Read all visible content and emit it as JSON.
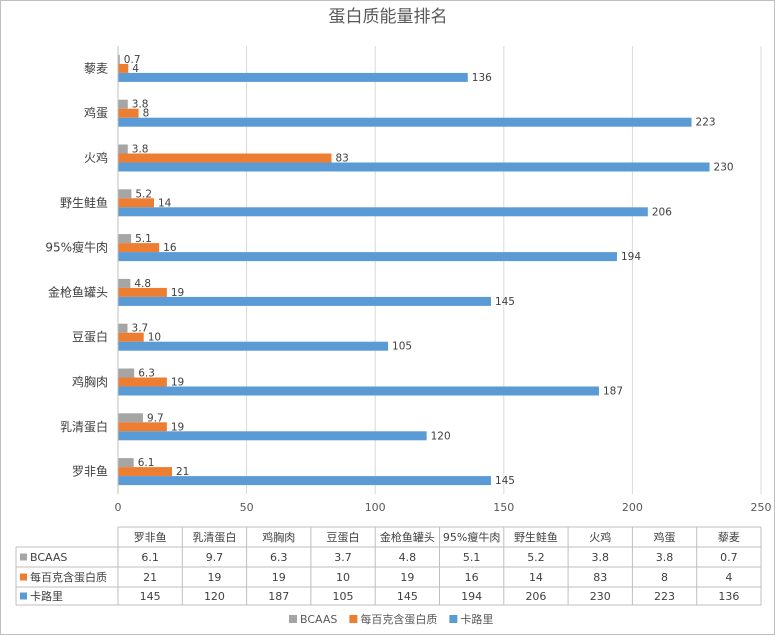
{
  "chart_data": {
    "type": "bar",
    "orientation": "horizontal",
    "title": "蛋白质能量排名",
    "categories": [
      "罗非鱼",
      "乳清蛋白",
      "鸡胸肉",
      "豆蛋白",
      "金枪鱼罐头",
      "95%瘦牛肉",
      "野生鲑鱼",
      "火鸡",
      "鸡蛋",
      "藜麦"
    ],
    "series": [
      {
        "name": "BCAAS",
        "color": "#a5a5a5",
        "values": [
          6.1,
          9.7,
          6.3,
          3.7,
          4.8,
          5.1,
          5.2,
          3.8,
          3.8,
          0.7
        ]
      },
      {
        "name": "每百克含蛋白质",
        "color": "#ed7d31",
        "values": [
          21,
          19,
          19,
          10,
          19,
          16,
          14,
          83,
          8,
          4
        ]
      },
      {
        "name": "卡路里",
        "color": "#5b9bd5",
        "values": [
          145,
          120,
          187,
          105,
          145,
          194,
          206,
          230,
          223,
          136
        ]
      }
    ],
    "xlim": [
      0,
      250
    ],
    "xticks": [
      0,
      50,
      100,
      150,
      200,
      250
    ],
    "grid": true,
    "data_table": true,
    "legend_position": "bottom"
  }
}
